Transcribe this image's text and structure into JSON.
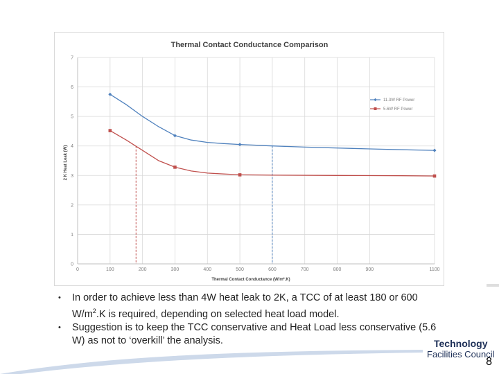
{
  "chart_data": {
    "type": "line",
    "title": "Thermal Contact Conductance Comparison",
    "xlabel": "Thermal Contact Conductance (W/m².K)",
    "ylabel": "2 K Heat Leak (W)",
    "xlim": [
      0,
      1100
    ],
    "ylim": [
      0,
      7
    ],
    "xticks": [
      "0",
      "100",
      "200",
      "300",
      "400",
      "500",
      "600",
      "700",
      "800",
      "900",
      "1100"
    ],
    "xtick_values": [
      0,
      100,
      200,
      300,
      400,
      500,
      600,
      700,
      800,
      900,
      1100
    ],
    "yticks": [
      0,
      1,
      2,
      3,
      4,
      5,
      6,
      7
    ],
    "grid": true,
    "legend_position": "top-right",
    "series": [
      {
        "name": "11.3W RF Power",
        "color": "#4f81bd",
        "marker": "diamond",
        "points": [
          [
            100,
            5.75
          ],
          [
            300,
            4.35
          ],
          [
            500,
            4.05
          ],
          [
            1100,
            3.85
          ]
        ],
        "curve": [
          [
            100,
            5.75
          ],
          [
            150,
            5.4
          ],
          [
            200,
            5.0
          ],
          [
            250,
            4.65
          ],
          [
            300,
            4.35
          ],
          [
            350,
            4.2
          ],
          [
            400,
            4.12
          ],
          [
            450,
            4.08
          ],
          [
            500,
            4.05
          ],
          [
            600,
            4.0
          ],
          [
            700,
            3.96
          ],
          [
            800,
            3.93
          ],
          [
            900,
            3.9
          ],
          [
            1000,
            3.87
          ],
          [
            1100,
            3.85
          ]
        ]
      },
      {
        "name": "5.6W RF Power",
        "color": "#c0504d",
        "marker": "square",
        "points": [
          [
            100,
            4.52
          ],
          [
            300,
            3.28
          ],
          [
            500,
            3.02
          ],
          [
            1100,
            2.98
          ]
        ],
        "curve": [
          [
            100,
            4.52
          ],
          [
            150,
            4.2
          ],
          [
            200,
            3.85
          ],
          [
            250,
            3.5
          ],
          [
            300,
            3.28
          ],
          [
            350,
            3.15
          ],
          [
            400,
            3.08
          ],
          [
            450,
            3.05
          ],
          [
            500,
            3.02
          ],
          [
            600,
            3.01
          ],
          [
            800,
            3.0
          ],
          [
            1000,
            2.99
          ],
          [
            1100,
            2.98
          ]
        ]
      }
    ],
    "reference_lines": [
      {
        "x": 180,
        "y": 4.0,
        "color": "#c0504d"
      },
      {
        "x": 600,
        "y": 4.0,
        "color": "#4f81bd"
      }
    ]
  },
  "bullets": [
    {
      "text_a": "In order to achieve less than 4W heat leak to 2K, a TCC of at least 180 or 600 W/m",
      "sup": "2",
      "text_b": ".K  is required, depending on selected heat load model."
    },
    {
      "text": "Suggestion is to keep the TCC conservative and Heat Load less conservative (5.6 W) as not to ‘overkill’ the analysis."
    }
  ],
  "bullet_char": "•",
  "logo": {
    "line1": "Technology",
    "line2": "Facilities Council"
  },
  "page_number": "8",
  "colors": {
    "swoosh": "#cdd9ea",
    "logo": "#1d2f57"
  }
}
